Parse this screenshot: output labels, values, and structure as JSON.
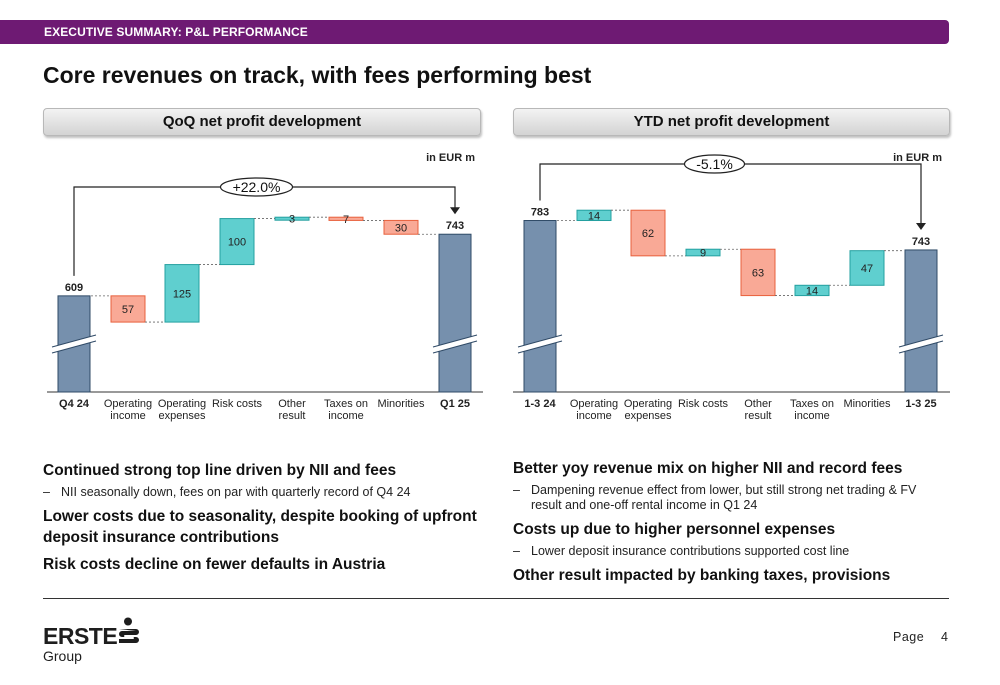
{
  "header": {
    "section_label": "EXECUTIVE SUMMARY: P&L PERFORMANCE"
  },
  "title": "Core revenues on track, with fees performing best",
  "panels": {
    "left_title": "QoQ net profit development",
    "right_title": "YTD net profit development"
  },
  "colors": {
    "base": "#7690ad",
    "increase": "#5fcfcf",
    "decrease": "#f9a996",
    "brand": "#6e1a73"
  },
  "chart_data": [
    {
      "type": "bar",
      "subtype": "waterfall",
      "title": "QoQ net profit development",
      "unit": "in EUR m",
      "change_label": "+22.0%",
      "categories": [
        "Q4 24",
        "Operating\nincome",
        "Operating\nexpenses",
        "Risk costs",
        "Other\nresult",
        "Taxes on\nincome",
        "Minorities",
        "Q1 25"
      ],
      "steps": [
        {
          "label": "609",
          "kind": "start",
          "value": 609
        },
        {
          "label": "57",
          "kind": "decrease",
          "value": -57
        },
        {
          "label": "125",
          "kind": "increase",
          "value": 125
        },
        {
          "label": "100",
          "kind": "increase",
          "value": 100
        },
        {
          "label": "3",
          "kind": "increase",
          "value": 3
        },
        {
          "label": "7",
          "kind": "decrease",
          "value": -7
        },
        {
          "label": "30",
          "kind": "decrease",
          "value": -30
        },
        {
          "label": "743",
          "kind": "end",
          "value": 743
        }
      ],
      "ylim": [
        400,
        800
      ],
      "axis_break": true
    },
    {
      "type": "bar",
      "subtype": "waterfall",
      "title": "YTD net profit development",
      "unit": "in EUR m",
      "change_label": "-5.1%",
      "categories": [
        "1-3 24",
        "Operating\nincome",
        "Operating\nexpenses",
        "Risk costs",
        "Other\nresult",
        "Taxes on\nincome",
        "Minorities",
        "1-3 25"
      ],
      "steps": [
        {
          "label": "783",
          "kind": "start",
          "value": 783
        },
        {
          "label": "14",
          "kind": "increase",
          "value": 14
        },
        {
          "label": "62",
          "kind": "decrease",
          "value": -62
        },
        {
          "label": "9",
          "kind": "increase",
          "value": 9
        },
        {
          "label": "63",
          "kind": "decrease",
          "value": -63
        },
        {
          "label": "14",
          "kind": "increase",
          "value": 14
        },
        {
          "label": "47",
          "kind": "increase",
          "value": 47
        },
        {
          "label": "743",
          "kind": "end",
          "value": 743
        }
      ],
      "ylim": [
        550,
        800
      ],
      "axis_break": true
    }
  ],
  "left_text": {
    "head1": "Continued strong top line driven by NII and fees",
    "sub1": "NII seasonally down, fees on par with quarterly record of Q4 24",
    "head2": "Lower costs due to seasonality, despite booking of upfront deposit insurance contributions",
    "head3": "Risk costs decline on fewer defaults in Austria"
  },
  "right_text": {
    "head1": "Better yoy revenue mix on higher NII and record fees",
    "sub1": "Dampening revenue effect from lower, but still strong net trading & FV result and one-off rental income in Q1 24",
    "head2": "Costs up due to higher personnel expenses",
    "sub2": "Lower deposit insurance contributions supported cost line",
    "head3": "Other result impacted by banking taxes, provisions"
  },
  "bullet_dash": "–",
  "footer": {
    "logo_top": "ERSTE",
    "logo_bottom": "Group",
    "page_label": "Page",
    "page_number": "4"
  }
}
